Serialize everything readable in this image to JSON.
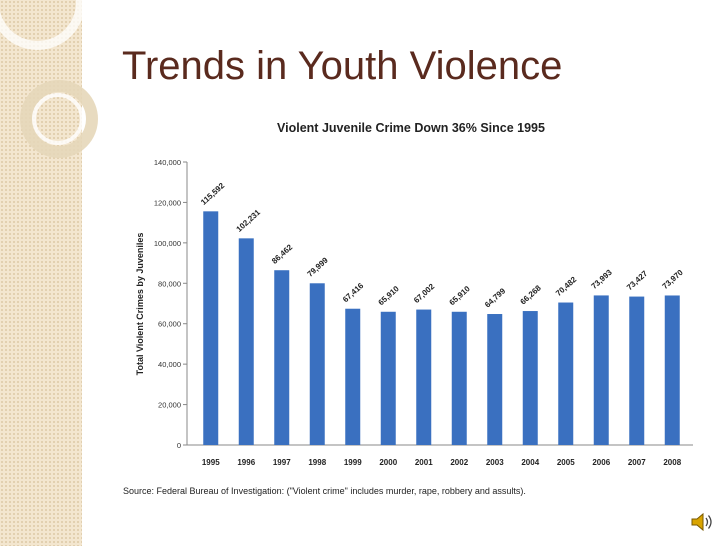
{
  "slide": {
    "title": "Trends in Youth Violence",
    "source": "Source: Federal Bureau of Investigation: (\"Violent crime\" includes murder, rape, robbery and assults)."
  },
  "icons": {
    "sound": "speaker-icon"
  },
  "colors": {
    "bar": "#3a70c0",
    "title": "#5a2a1e",
    "sidebar": "#f3e6cf"
  },
  "chart_data": {
    "type": "bar",
    "title": "Violent Juvenile Crime Down 36% Since 1995",
    "xlabel": "",
    "ylabel": "Total Violent Crimes by Juveniles",
    "ylim": [
      0,
      140000
    ],
    "yticks": [
      "0",
      "20,000",
      "40,000",
      "60,000",
      "80,000",
      "100,000",
      "120,000",
      "140,000"
    ],
    "categories": [
      "1995",
      "1996",
      "1997",
      "1998",
      "1999",
      "2000",
      "2001",
      "2002",
      "2003",
      "2004",
      "2005",
      "2006",
      "2007",
      "2008"
    ],
    "values": [
      115592,
      102231,
      86462,
      79999,
      67416,
      65910,
      67002,
      65910,
      64799,
      66268,
      70482,
      73993,
      73427,
      73970
    ],
    "labels": [
      "115,592",
      "102,231",
      "86,462",
      "79,999",
      "67,416",
      "65,910",
      "67,002",
      "65,910",
      "64,799",
      "66,268",
      "70,482",
      "73,993",
      "73,427",
      "73,970"
    ],
    "grid": false,
    "legend": "none"
  }
}
